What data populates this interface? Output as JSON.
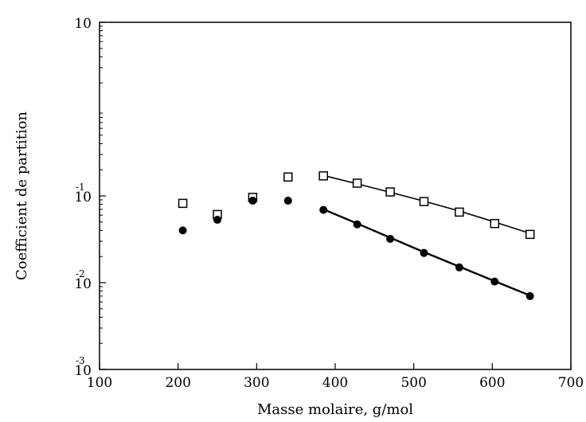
{
  "chart_data": {
    "type": "scatter",
    "title": "",
    "xlabel": "Masse molaire, g/mol",
    "ylabel": "Coefficient de partition",
    "xlim": [
      100,
      700
    ],
    "ylim": [
      0.001,
      10
    ],
    "yscale": "log",
    "grid": false,
    "x_ticks": [
      {
        "value": 100,
        "label": "100"
      },
      {
        "value": 200,
        "label": "200"
      },
      {
        "value": 300,
        "label": "300"
      },
      {
        "value": 400,
        "label": "400"
      },
      {
        "value": 500,
        "label": "500"
      },
      {
        "value": 600,
        "label": "600"
      },
      {
        "value": 700,
        "label": "700"
      }
    ],
    "y_ticks": [
      {
        "value": 10,
        "base": "10",
        "exp": ""
      },
      {
        "value": 0.1,
        "base": "10",
        "exp": "-1"
      },
      {
        "value": 0.01,
        "base": "10",
        "exp": "-2"
      },
      {
        "value": 0.001,
        "base": "10",
        "exp": "-3"
      }
    ],
    "series": [
      {
        "marker": "open-square",
        "points": [
          [
            206,
            0.082
          ],
          [
            250,
            0.061
          ],
          [
            295,
            0.096
          ],
          [
            340,
            0.165
          ],
          [
            385,
            0.17
          ],
          [
            428,
            0.14
          ],
          [
            470,
            0.111
          ],
          [
            513,
            0.086
          ],
          [
            558,
            0.065
          ],
          [
            603,
            0.048
          ],
          [
            648,
            0.036
          ]
        ],
        "fit": [
          [
            385,
            0.172
          ],
          [
            430,
            0.136
          ],
          [
            470,
            0.11
          ],
          [
            513,
            0.087
          ],
          [
            558,
            0.067
          ],
          [
            603,
            0.05
          ],
          [
            648,
            0.037
          ]
        ]
      },
      {
        "marker": "filled-circle",
        "points": [
          [
            206,
            0.04
          ],
          [
            250,
            0.053
          ],
          [
            295,
            0.088
          ],
          [
            340,
            0.088
          ],
          [
            385,
            0.069
          ],
          [
            428,
            0.047
          ],
          [
            470,
            0.032
          ],
          [
            513,
            0.022
          ],
          [
            558,
            0.015
          ],
          [
            603,
            0.0103
          ],
          [
            648,
            0.007
          ]
        ],
        "fit": [
          [
            385,
            0.07
          ],
          [
            428,
            0.048
          ],
          [
            470,
            0.033
          ],
          [
            513,
            0.0225
          ],
          [
            558,
            0.0153
          ],
          [
            603,
            0.0104
          ],
          [
            648,
            0.0071
          ]
        ]
      }
    ]
  }
}
